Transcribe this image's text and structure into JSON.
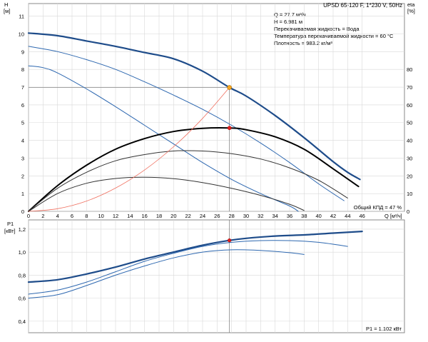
{
  "chart_data": [
    {
      "type": "line",
      "title": "UPSD 65-120 F, 1*230 V, 50Hz",
      "ylabel": "H",
      "yunit": "[м]",
      "y2label": "eta",
      "y2unit": "[%]",
      "xlabel": "Q",
      "xunit": "[м³/ч]",
      "xlim": [
        0,
        48
      ],
      "ylim": [
        0,
        12
      ],
      "y2lim": [
        0,
        90
      ],
      "xticks": [
        0,
        2,
        4,
        6,
        8,
        10,
        12,
        14,
        16,
        18,
        20,
        22,
        24,
        26,
        28,
        30,
        32,
        34,
        36,
        38,
        40,
        42,
        44,
        46
      ],
      "yticks": [
        0,
        1,
        2,
        3,
        4,
        5,
        6,
        7,
        8,
        9,
        10,
        11
      ],
      "y2ticks": [
        0,
        10,
        20,
        30,
        40,
        50,
        60,
        70,
        80
      ],
      "grid": true,
      "info": [
        "Q = 27.7 м³/ч",
        "H = 6.981 м",
        "Перекачиваемая жидкость = Вода",
        "Температура перекачиваемой жидкости = 60 °C",
        "Плотность = 983.2 кг/м³"
      ],
      "annotation": "Общий КПД = 47 %",
      "duty_point": {
        "q": 27.7,
        "h": 6.981,
        "eta": 47
      },
      "series": [
        {
          "axis": "left",
          "role": "head",
          "color": "#1e4c8a",
          "width": 2.2,
          "points": [
            [
              0,
              10.05
            ],
            [
              4,
              9.9
            ],
            [
              8,
              9.6
            ],
            [
              12,
              9.3
            ],
            [
              16,
              8.95
            ],
            [
              20,
              8.6
            ],
            [
              24,
              7.9
            ],
            [
              27.7,
              6.98
            ],
            [
              30,
              6.5
            ],
            [
              34,
              5.4
            ],
            [
              38,
              4.15
            ],
            [
              42,
              2.8
            ],
            [
              44,
              2.2
            ],
            [
              45.7,
              1.8
            ]
          ]
        },
        {
          "axis": "left",
          "role": "head",
          "color": "#2e68b0",
          "width": 1,
          "points": [
            [
              0,
              9.3
            ],
            [
              4,
              9.0
            ],
            [
              8,
              8.55
            ],
            [
              12,
              8.0
            ],
            [
              16,
              7.3
            ],
            [
              20,
              6.55
            ],
            [
              24,
              5.75
            ],
            [
              28,
              4.85
            ],
            [
              32,
              3.85
            ],
            [
              36,
              2.75
            ],
            [
              40,
              1.55
            ],
            [
              43.5,
              0.6
            ]
          ]
        },
        {
          "axis": "left",
          "role": "head",
          "color": "#2e68b0",
          "width": 1,
          "points": [
            [
              0,
              8.2
            ],
            [
              2,
              8.1
            ],
            [
              4,
              7.8
            ],
            [
              8,
              6.9
            ],
            [
              12,
              5.9
            ],
            [
              16,
              4.85
            ],
            [
              20,
              3.8
            ],
            [
              24,
              2.75
            ],
            [
              28,
              1.8
            ],
            [
              32,
              1.0
            ],
            [
              36,
              0.3
            ],
            [
              37.2,
              0
            ]
          ]
        },
        {
          "axis": "right",
          "role": "efficiency",
          "color": "#000000",
          "width": 2,
          "points": [
            [
              0,
              0
            ],
            [
              4,
              14.5
            ],
            [
              8,
              26
            ],
            [
              12,
              35
            ],
            [
              16,
              41
            ],
            [
              20,
              45
            ],
            [
              24,
              46.8
            ],
            [
              27.7,
              47
            ],
            [
              30,
              46
            ],
            [
              34,
              42
            ],
            [
              38,
              35
            ],
            [
              42,
              24
            ],
            [
              45.5,
              14
            ]
          ]
        },
        {
          "axis": "right",
          "role": "efficiency",
          "color": "#333333",
          "width": 1,
          "points": [
            [
              0,
              0
            ],
            [
              4,
              13
            ],
            [
              8,
              22
            ],
            [
              12,
              28.5
            ],
            [
              16,
              32
            ],
            [
              20,
              34
            ],
            [
              24,
              34
            ],
            [
              28,
              32.5
            ],
            [
              32,
              29.5
            ],
            [
              36,
              24.5
            ],
            [
              40,
              17.5
            ],
            [
              44,
              7.5
            ]
          ]
        },
        {
          "axis": "right",
          "role": "efficiency",
          "color": "#333333",
          "width": 1,
          "points": [
            [
              0,
              0
            ],
            [
              4,
              10
            ],
            [
              8,
              15.8
            ],
            [
              12,
              18.5
            ],
            [
              16,
              19.2
            ],
            [
              20,
              18.4
            ],
            [
              24,
              16.2
            ],
            [
              28,
              13
            ],
            [
              32,
              9
            ],
            [
              36,
              4
            ],
            [
              38,
              0.5
            ]
          ]
        },
        {
          "axis": "left",
          "role": "system",
          "color": "#f07060",
          "width": 0.8,
          "points": [
            [
              0,
              0
            ],
            [
              4,
              0.15
            ],
            [
              8,
              0.58
            ],
            [
              12,
              1.31
            ],
            [
              16,
              2.33
            ],
            [
              20,
              3.64
            ],
            [
              24,
              5.24
            ],
            [
              27.7,
              6.98
            ]
          ]
        }
      ]
    },
    {
      "type": "line",
      "ylabel": "P1",
      "yunit": "[кВт]",
      "xlim": [
        0,
        48
      ],
      "ylim": [
        0.3,
        1.28
      ],
      "yticks": [
        0.4,
        0.6,
        0.8,
        1.0,
        1.2
      ],
      "yticklabels": [
        "0,4",
        "0,6",
        "0,8",
        "1,0",
        "1,2"
      ],
      "grid": true,
      "annotation": "P1 = 1.102 кВт",
      "duty_point": {
        "q": 27.7,
        "p1": 1.102
      },
      "series": [
        {
          "color": "#1e4c8a",
          "width": 2.2,
          "points": [
            [
              0,
              0.74
            ],
            [
              4,
              0.76
            ],
            [
              8,
              0.81
            ],
            [
              12,
              0.87
            ],
            [
              16,
              0.94
            ],
            [
              20,
              1.0
            ],
            [
              24,
              1.06
            ],
            [
              27.7,
              1.102
            ],
            [
              30,
              1.12
            ],
            [
              34,
              1.14
            ],
            [
              38,
              1.15
            ],
            [
              42,
              1.165
            ],
            [
              46,
              1.18
            ]
          ]
        },
        {
          "color": "#2e68b0",
          "width": 1,
          "points": [
            [
              0,
              0.635
            ],
            [
              4,
              0.67
            ],
            [
              8,
              0.74
            ],
            [
              12,
              0.83
            ],
            [
              16,
              0.92
            ],
            [
              20,
              0.99
            ],
            [
              24,
              1.05
            ],
            [
              28,
              1.085
            ],
            [
              32,
              1.1
            ],
            [
              36,
              1.1
            ],
            [
              40,
              1.085
            ],
            [
              44,
              1.05
            ]
          ]
        },
        {
          "color": "#2e68b0",
          "width": 1,
          "points": [
            [
              0,
              0.6
            ],
            [
              4,
              0.63
            ],
            [
              8,
              0.71
            ],
            [
              12,
              0.8
            ],
            [
              16,
              0.88
            ],
            [
              20,
              0.95
            ],
            [
              24,
              1.0
            ],
            [
              28,
              1.02
            ],
            [
              32,
              1.015
            ],
            [
              36,
              0.995
            ],
            [
              38,
              0.98
            ]
          ]
        }
      ]
    }
  ]
}
